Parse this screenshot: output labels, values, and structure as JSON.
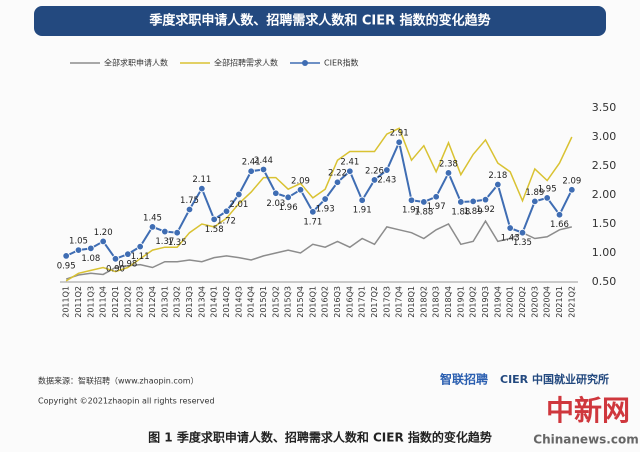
{
  "chart_data": {
    "type": "line",
    "title": "季度求职申请人数、招聘需求人数和 CIER 指数的变化趋势",
    "categories": [
      "2011Q1",
      "2011Q2",
      "2011Q3",
      "2011Q4",
      "2012Q1",
      "2012Q2",
      "2012Q3",
      "2012Q4",
      "2013Q1",
      "2013Q2",
      "2013Q3",
      "2013Q4",
      "2014Q1",
      "2014Q2",
      "2014Q3",
      "2014Q4",
      "2015Q1",
      "2015Q2",
      "2015Q3",
      "2015Q4",
      "2016Q1",
      "2016Q2",
      "2016Q3",
      "2016Q4",
      "2017Q1",
      "2017Q2",
      "2017Q3",
      "2017Q4",
      "2018Q1",
      "2018Q2",
      "2018Q3",
      "2018Q4",
      "2019Q1",
      "2019Q2",
      "2019Q3",
      "2019Q4",
      "2020Q1",
      "2020Q2",
      "2020Q3",
      "2020Q4",
      "2021Q1",
      "2021Q2"
    ],
    "series": [
      {
        "name": "全部求职申请人数",
        "color": "#8c8c8c",
        "markers": false,
        "values": [
          0.55,
          0.62,
          0.65,
          0.63,
          0.75,
          0.78,
          0.8,
          0.75,
          0.85,
          0.85,
          0.88,
          0.85,
          0.92,
          0.95,
          0.92,
          0.88,
          0.95,
          1.0,
          1.05,
          1.0,
          1.15,
          1.1,
          1.2,
          1.1,
          1.25,
          1.15,
          1.45,
          1.4,
          1.35,
          1.25,
          1.4,
          1.5,
          1.15,
          1.2,
          1.55,
          1.2,
          1.25,
          1.35,
          1.25,
          1.28,
          1.4,
          1.45
        ]
      },
      {
        "name": "全部招聘需求人数",
        "color": "#d9c232",
        "markers": false,
        "values": [
          0.52,
          0.65,
          0.7,
          0.75,
          0.68,
          0.75,
          0.9,
          1.05,
          1.1,
          1.1,
          1.35,
          1.5,
          1.45,
          1.6,
          1.85,
          2.05,
          2.3,
          2.3,
          2.1,
          2.2,
          1.95,
          2.1,
          2.6,
          2.75,
          2.75,
          2.75,
          3.05,
          3.15,
          2.6,
          2.85,
          2.4,
          2.9,
          2.35,
          2.7,
          2.95,
          2.55,
          2.4,
          1.9,
          2.45,
          2.25,
          2.55,
          3.0
        ]
      },
      {
        "name": "CIER指数",
        "color": "#3f6db3",
        "markers": true,
        "values": [
          0.95,
          1.05,
          1.08,
          1.2,
          0.9,
          0.98,
          1.11,
          1.45,
          1.37,
          1.35,
          1.75,
          2.11,
          1.58,
          1.72,
          2.01,
          2.41,
          2.44,
          2.03,
          1.96,
          2.09,
          1.71,
          1.93,
          2.22,
          2.41,
          1.91,
          2.26,
          2.43,
          2.91,
          1.91,
          1.88,
          1.97,
          2.38,
          1.88,
          1.89,
          1.92,
          2.18,
          1.43,
          1.35,
          1.89,
          1.95,
          1.66,
          2.09
        ],
        "value_labels": [
          "0.95",
          "1.05",
          "1.08",
          "1.20",
          "0.90",
          "0.98",
          "1.11",
          "1.45",
          "1.37",
          "1.35",
          "1.75",
          "2.11",
          "1.58",
          "1.72",
          "2.01",
          "2.41",
          "2.44",
          "2.03",
          "1.96",
          "2.09",
          "1.71",
          "1.93",
          "2.22",
          "2.41",
          "1.91",
          "2.26",
          "2.43",
          "2.91",
          "1.91",
          "1.88",
          "1.97",
          "2.38",
          "1.88",
          "1.89",
          "1.92",
          "2.18",
          "1.43",
          "1.35",
          "1.89",
          "1.95",
          "1.66",
          "2.09"
        ]
      }
    ],
    "ylim": [
      0.5,
      3.5
    ],
    "yticks": [
      {
        "value": 0.5,
        "label": "0.50"
      },
      {
        "value": 1,
        "label": "1.00"
      },
      {
        "value": 1.5,
        "label": "1.50"
      },
      {
        "value": 2,
        "label": "2.00"
      },
      {
        "value": 2.5,
        "label": "2.50"
      },
      {
        "value": 3,
        "label": "3.00"
      },
      {
        "value": 3.5,
        "label": "3.50"
      }
    ],
    "grid": false,
    "legend": "top",
    "source": "数据来源：智联招聘（www.zhaopin.com）",
    "copyright": "Copyright ©2021zhaopin all rights reserved",
    "logo_left": "智联招聘",
    "logo_right": "CIER 中国就业研究所",
    "caption": "图 1  季度求职申请人数、招聘需求人数和 CIER 指数的变化趋势",
    "watermark": "中新网",
    "watermark_site": "Chinanews.com"
  }
}
